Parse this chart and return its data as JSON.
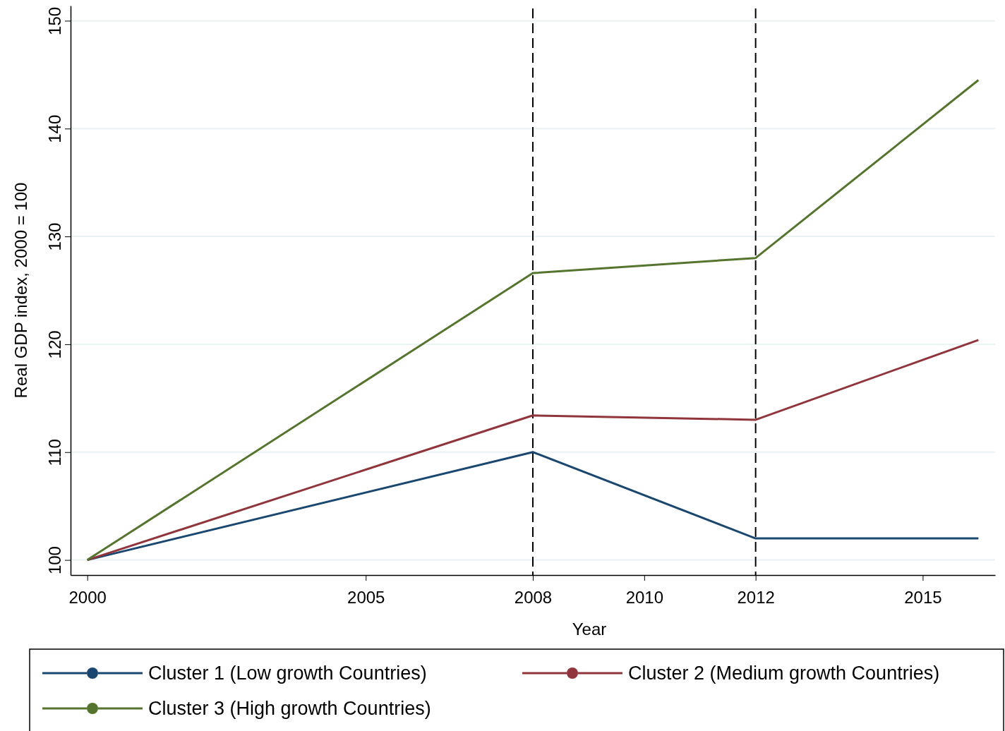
{
  "chart_data": {
    "type": "line",
    "xlabel": "Year",
    "ylabel": "Real GDP index, 2000 = 100",
    "x": [
      2000,
      2008,
      2012,
      2016
    ],
    "series": [
      {
        "name": "Cluster 1 (Low growth Countries)",
        "color": "#1a476f",
        "values": [
          100,
          110,
          102,
          102
        ]
      },
      {
        "name": "Cluster 2 (Medium growth Countries)",
        "color": "#90353b",
        "values": [
          100,
          113.4,
          113,
          120.4
        ]
      },
      {
        "name": "Cluster 3 (High growth Countries)",
        "color": "#55752f",
        "values": [
          100,
          126.6,
          128,
          144.5
        ]
      }
    ],
    "xlim": [
      1999.7,
      2016.3
    ],
    "xticks": [
      2000,
      2005,
      2008,
      2010,
      2012,
      2015
    ],
    "ylim": [
      98.6,
      151.4
    ],
    "yticks": [
      100,
      110,
      120,
      130,
      140,
      150
    ],
    "grid": "y",
    "legend": "bottom",
    "line_style": "solid",
    "ref_lines": [
      {
        "axis": "x",
        "value": 2008,
        "color": "#000000",
        "line_style": "dashed"
      },
      {
        "axis": "x",
        "value": 2012,
        "color": "#000000",
        "line_style": "dashed"
      }
    ]
  }
}
